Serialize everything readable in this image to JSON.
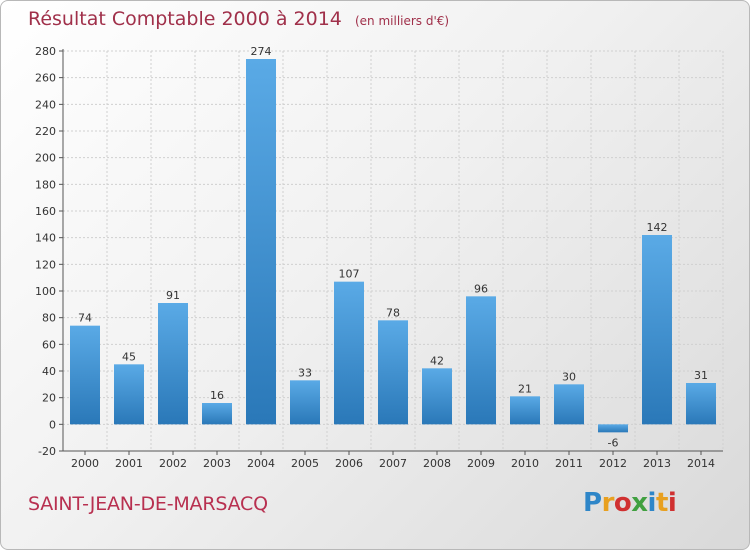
{
  "header": {
    "title": "Résultat Comptable 2000 à 2014",
    "subtitle": "(en milliers d'€)"
  },
  "footer": {
    "commune": "SAINT-JEAN-DE-MARSACQ",
    "brand": "Proxiti"
  },
  "colors": {
    "bar_top": "#5aaae6",
    "bar_bottom": "#2a78b8",
    "title": "#a0304a",
    "brand_letters": [
      "#2e86c8",
      "#e8a020",
      "#d03030",
      "#40a040",
      "#2e86c8",
      "#e8a020",
      "#d03030"
    ]
  },
  "chart_data": {
    "type": "bar",
    "categories": [
      "2000",
      "2001",
      "2002",
      "2003",
      "2004",
      "2005",
      "2006",
      "2007",
      "2008",
      "2009",
      "2010",
      "2011",
      "2012",
      "2013",
      "2014"
    ],
    "values": [
      74,
      45,
      91,
      16,
      274,
      33,
      107,
      78,
      42,
      96,
      21,
      30,
      -6,
      142,
      31
    ],
    "ylim": [
      -20,
      280
    ],
    "yticks": [
      -20,
      0,
      20,
      40,
      60,
      80,
      100,
      120,
      140,
      160,
      180,
      200,
      220,
      240,
      260,
      280
    ],
    "grid": true,
    "legend": "none"
  }
}
